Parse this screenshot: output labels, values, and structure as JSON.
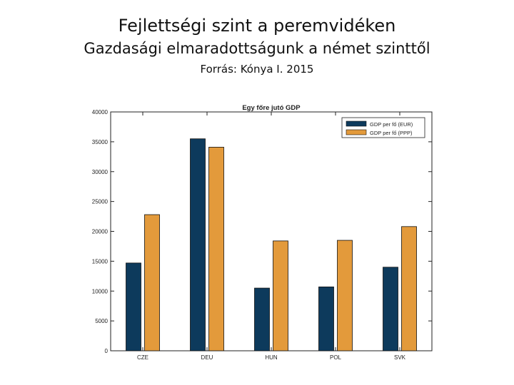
{
  "slide": {
    "title": "Fejlettségi szint a peremvidéken",
    "subtitle": "Gazdasági elmaradottságunk a német szinttől",
    "source": "Forrás: Kónya I. 2015"
  },
  "chart_data": {
    "type": "bar",
    "title": "Egy főre jutó GDP",
    "xlabel": "",
    "ylabel": "",
    "categories": [
      "CZE",
      "DEU",
      "HUN",
      "POL",
      "SVK"
    ],
    "series": [
      {
        "name": "GDP per fő (EUR)",
        "color": "#0d3a5c",
        "values": [
          14700,
          35500,
          10500,
          10700,
          14000
        ]
      },
      {
        "name": "GDP per fő (PPP)",
        "color": "#e39a3b",
        "values": [
          22800,
          34100,
          18400,
          18500,
          20800
        ]
      }
    ],
    "ylim": [
      0,
      40000
    ],
    "yticks": [
      0,
      5000,
      10000,
      15000,
      20000,
      25000,
      30000,
      35000,
      40000
    ],
    "grid": false,
    "legend_position": "top-right"
  }
}
